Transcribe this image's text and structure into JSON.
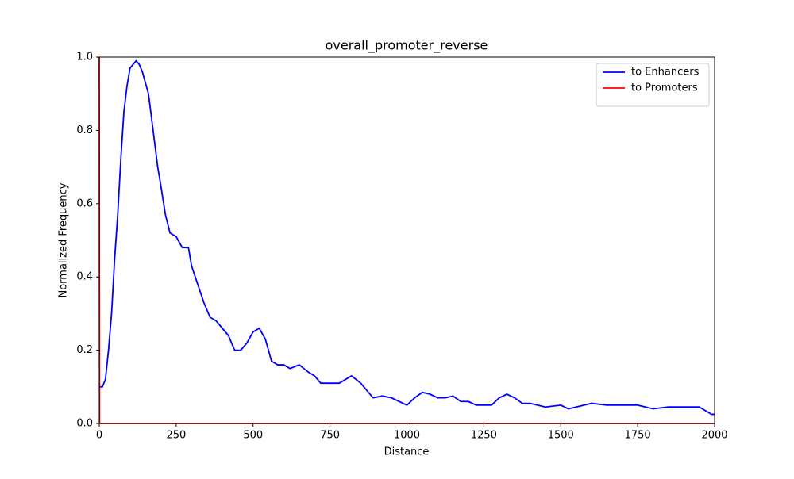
{
  "chart_data": {
    "type": "line",
    "title": "overall_promoter_reverse",
    "x_label": "Distance",
    "y_label": "Normalized Frequency",
    "xlim": [
      0,
      2000
    ],
    "ylim": [
      0,
      1
    ],
    "xticks": [
      0,
      250,
      500,
      750,
      1000,
      1250,
      1500,
      1750,
      2000
    ],
    "yticks": [
      {
        "value": 0,
        "label": "0.0"
      },
      0.2,
      0.4,
      0.6,
      0.8,
      {
        "value": 1,
        "label": "1.0"
      }
    ],
    "legend": "upper right",
    "grid": false,
    "series": [
      {
        "name": "to Enhancers",
        "color": "#0000ff",
        "x": [
          0,
          10,
          20,
          30,
          40,
          50,
          60,
          70,
          80,
          90,
          100,
          110,
          120,
          130,
          140,
          150,
          160,
          175,
          190,
          200,
          215,
          230,
          250,
          270,
          290,
          300,
          320,
          340,
          360,
          380,
          400,
          420,
          440,
          460,
          480,
          500,
          520,
          540,
          560,
          580,
          600,
          620,
          650,
          680,
          700,
          720,
          750,
          780,
          800,
          820,
          850,
          870,
          890,
          920,
          950,
          975,
          1000,
          1025,
          1050,
          1075,
          1100,
          1125,
          1150,
          1175,
          1200,
          1225,
          1250,
          1275,
          1300,
          1325,
          1350,
          1375,
          1400,
          1450,
          1500,
          1525,
          1550,
          1600,
          1650,
          1700,
          1750,
          1800,
          1850,
          1900,
          1950,
          1980,
          1990,
          2000
        ],
        "values": [
          0.1,
          0.1,
          0.12,
          0.2,
          0.3,
          0.45,
          0.57,
          0.72,
          0.85,
          0.92,
          0.97,
          0.98,
          0.99,
          0.98,
          0.96,
          0.93,
          0.9,
          0.8,
          0.7,
          0.65,
          0.57,
          0.52,
          0.51,
          0.48,
          0.48,
          0.43,
          0.38,
          0.33,
          0.29,
          0.28,
          0.26,
          0.24,
          0.2,
          0.2,
          0.22,
          0.25,
          0.26,
          0.23,
          0.17,
          0.16,
          0.16,
          0.15,
          0.16,
          0.14,
          0.13,
          0.11,
          0.11,
          0.11,
          0.12,
          0.13,
          0.11,
          0.09,
          0.07,
          0.075,
          0.07,
          0.06,
          0.05,
          0.07,
          0.085,
          0.08,
          0.07,
          0.07,
          0.075,
          0.06,
          0.06,
          0.05,
          0.05,
          0.05,
          0.07,
          0.08,
          0.07,
          0.055,
          0.055,
          0.045,
          0.05,
          0.04,
          0.045,
          0.055,
          0.05,
          0.05,
          0.05,
          0.04,
          0.045,
          0.045,
          0.045,
          0.03,
          0.025,
          0.025
        ]
      },
      {
        "name": "to Promoters",
        "color": "#ff0000",
        "x": [
          0,
          1,
          2000
        ],
        "values": [
          1,
          0,
          0
        ]
      }
    ]
  }
}
